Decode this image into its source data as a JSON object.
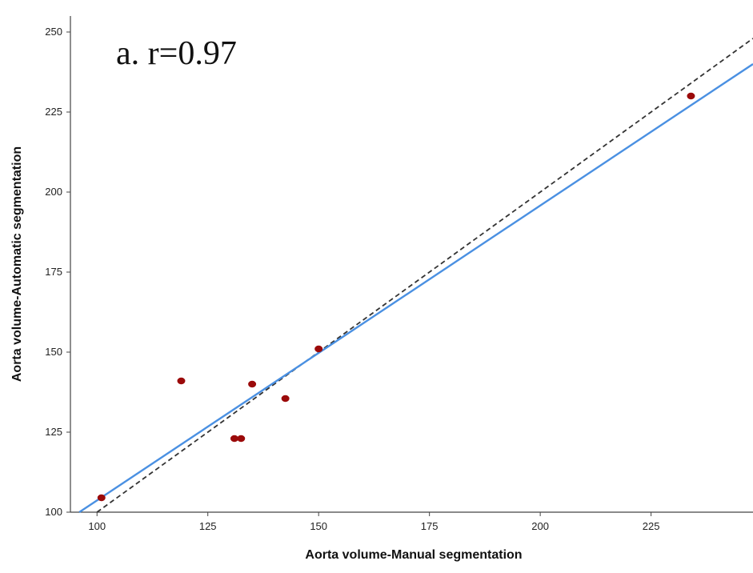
{
  "chart_data": {
    "type": "scatter",
    "annotation": "a. r=0.97",
    "xlabel": "Aorta volume-Manual segmentation",
    "ylabel": "Aorta volume-Automatic segmentation",
    "xlim": [
      94,
      248
    ],
    "ylim": [
      100,
      255
    ],
    "xticks": [
      100,
      125,
      150,
      175,
      200,
      225
    ],
    "yticks": [
      100,
      125,
      150,
      175,
      200,
      225,
      250
    ],
    "xtick_labels": [
      "100",
      "125",
      "150",
      "175",
      "200",
      "225"
    ],
    "ytick_labels": [
      "100",
      "125",
      "150",
      "175",
      "200",
      "225",
      "250"
    ],
    "grid": false,
    "points": [
      {
        "x": 101,
        "y": 104.5
      },
      {
        "x": 119,
        "y": 141
      },
      {
        "x": 131,
        "y": 123
      },
      {
        "x": 132.5,
        "y": 123
      },
      {
        "x": 135,
        "y": 140
      },
      {
        "x": 142.5,
        "y": 135.5
      },
      {
        "x": 150,
        "y": 151
      },
      {
        "x": 234,
        "y": 230
      }
    ],
    "fit_line": {
      "x": [
        96,
        248
      ],
      "y": [
        100,
        240
      ]
    },
    "identity_line": {
      "x": [
        100,
        248
      ],
      "y": [
        100,
        248
      ]
    },
    "colors": {
      "points": "#9b0a0a",
      "fit_line": "#4a90e2",
      "identity_line": "#333333",
      "axis": "#444444"
    }
  }
}
